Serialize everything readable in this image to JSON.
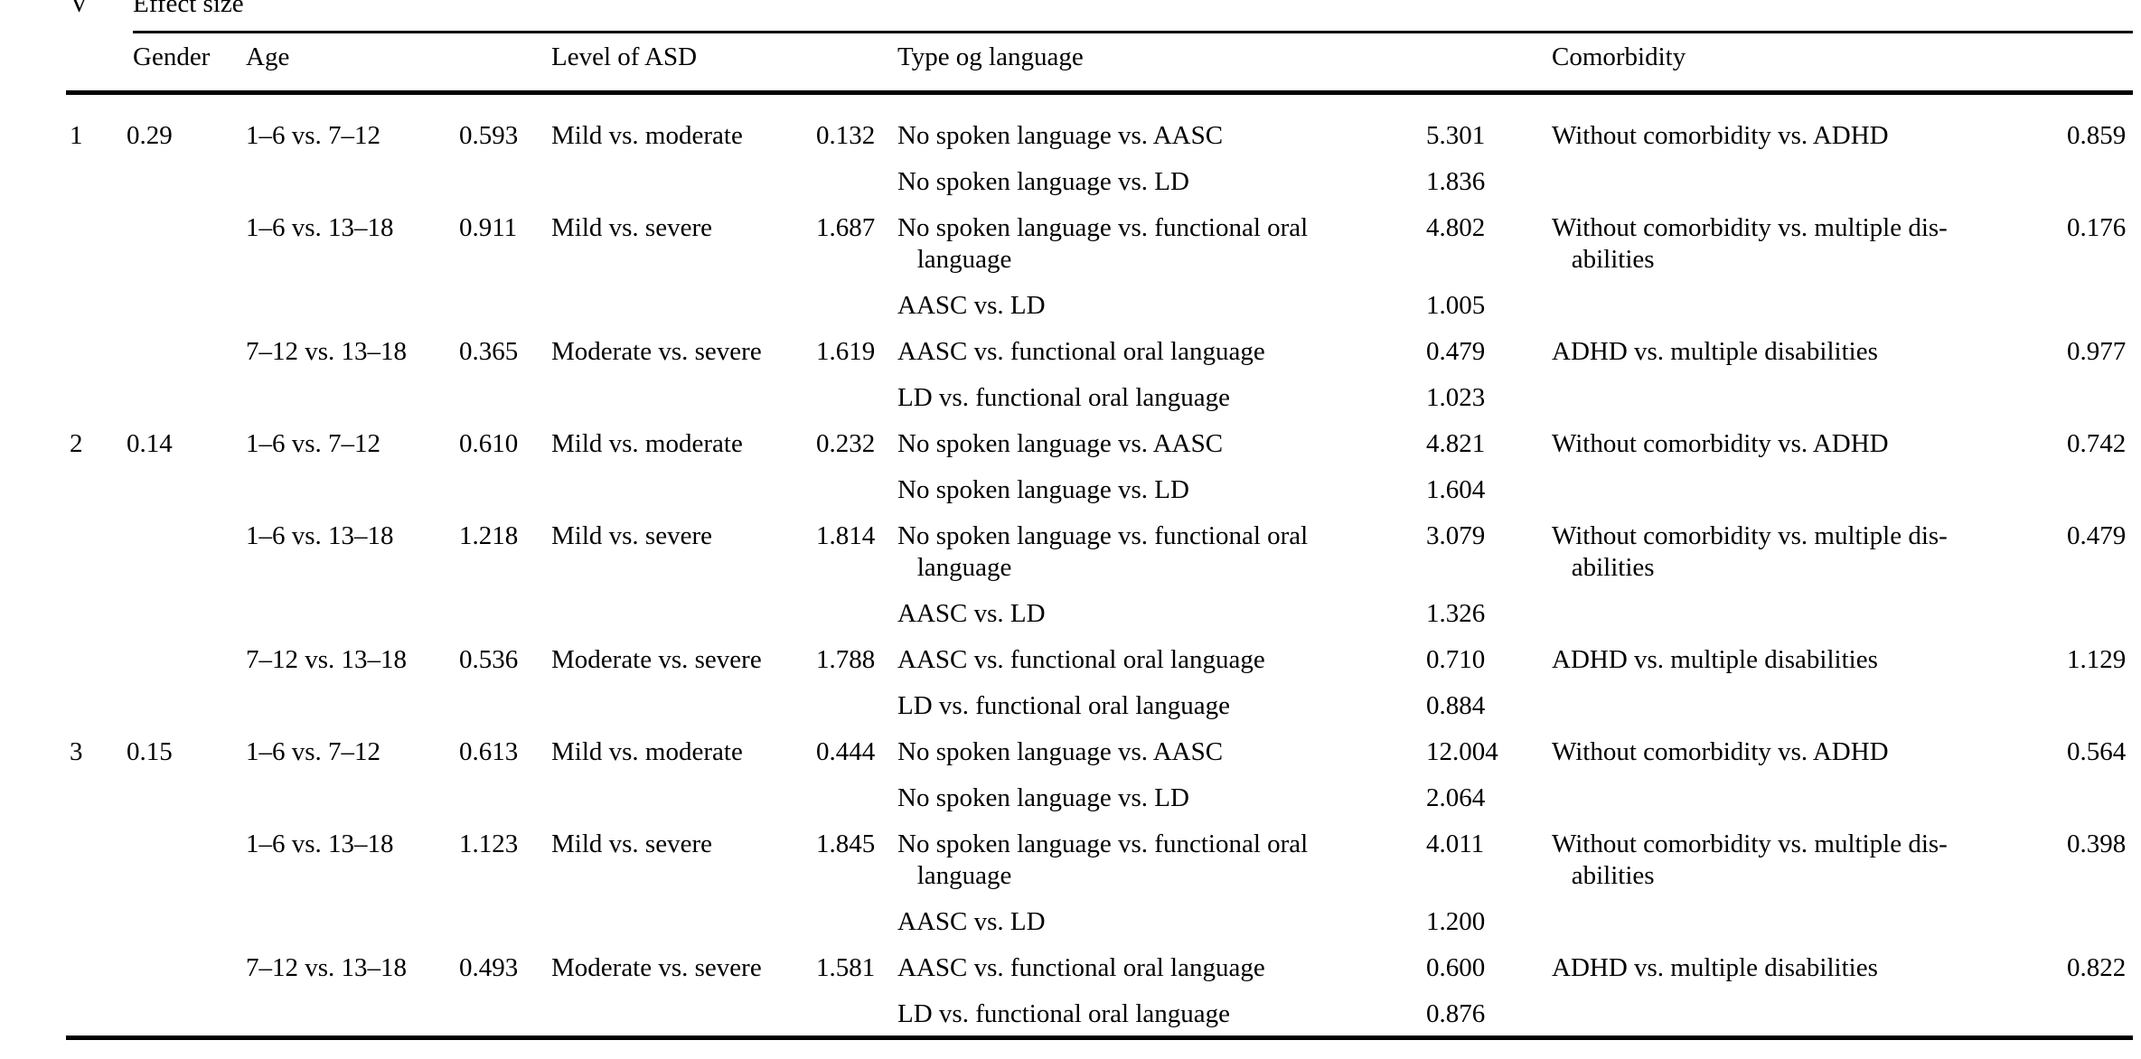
{
  "page": {
    "background": "#ffffff",
    "text_color": "#000000"
  },
  "top_header": {
    "col1": "V",
    "spanner": "Effect size"
  },
  "columns": {
    "gender": "Gender",
    "age": "Age",
    "asd": "Level of ASD",
    "language": "Type og language",
    "comorbidity": "Comorbidity"
  },
  "blocks": [
    {
      "id": "1",
      "gender": "0.29",
      "lines": [
        {
          "age": "1–6 vs. 7–12",
          "age_v": "0.593",
          "asd": "Mild vs. moderate",
          "asd_v": "0.132",
          "lang": "No spoken language vs. AASC",
          "lang_v": "5.301",
          "com": "Without comorbidity vs. ADHD",
          "com_v": "0.859"
        },
        {
          "lang": "No spoken language vs. LD",
          "lang_v": "1.836"
        },
        {
          "age": "1–6 vs. 13–18",
          "age_v": "0.911",
          "asd": "Mild vs. severe",
          "asd_v": "1.687",
          "lang": "No spoken language vs. functional oral\n   language",
          "lang_v": "4.802",
          "com": "Without comorbidity vs. multiple dis-\n   abilities",
          "com_v": "0.176"
        },
        {
          "lang": "AASC vs. LD",
          "lang_v": "1.005"
        },
        {
          "age": "7–12 vs. 13–18",
          "age_v": "0.365",
          "asd": "Moderate vs. severe",
          "asd_v": "1.619",
          "lang": "AASC vs. functional oral language",
          "lang_v": "0.479",
          "com": "ADHD vs. multiple disabilities",
          "com_v": "0.977"
        },
        {
          "lang": "LD vs. functional oral language",
          "lang_v": "1.023"
        }
      ]
    },
    {
      "id": "2",
      "gender": "0.14",
      "lines": [
        {
          "age": "1–6 vs. 7–12",
          "age_v": "0.610",
          "asd": "Mild vs. moderate",
          "asd_v": "0.232",
          "lang": "No spoken language vs. AASC",
          "lang_v": "4.821",
          "com": "Without comorbidity vs. ADHD",
          "com_v": "0.742"
        },
        {
          "lang": "No spoken language vs. LD",
          "lang_v": "1.604"
        },
        {
          "age": "1–6 vs. 13–18",
          "age_v": "1.218",
          "asd": "Mild vs. severe",
          "asd_v": "1.814",
          "lang": "No spoken language vs. functional oral\n   language",
          "lang_v": "3.079",
          "com": "Without comorbidity vs. multiple dis-\n   abilities",
          "com_v": "0.479"
        },
        {
          "lang": "AASC vs. LD",
          "lang_v": "1.326"
        },
        {
          "age": "7–12 vs. 13–18",
          "age_v": "0.536",
          "asd": "Moderate vs. severe",
          "asd_v": "1.788",
          "lang": "AASC vs. functional oral language",
          "lang_v": "0.710",
          "com": "ADHD vs. multiple disabilities",
          "com_v": "1.129"
        },
        {
          "lang": "LD vs. functional oral language",
          "lang_v": "0.884"
        }
      ]
    },
    {
      "id": "3",
      "gender": "0.15",
      "lines": [
        {
          "age": "1–6 vs. 7–12",
          "age_v": "0.613",
          "asd": "Mild vs. moderate",
          "asd_v": "0.444",
          "lang": "No spoken language vs. AASC",
          "lang_v": "12.004",
          "com": "Without comorbidity vs. ADHD",
          "com_v": "0.564"
        },
        {
          "lang": "No spoken language vs. LD",
          "lang_v": "2.064"
        },
        {
          "age": "1–6 vs. 13–18",
          "age_v": "1.123",
          "asd": "Mild vs. severe",
          "asd_v": "1.845",
          "lang": "No spoken language vs. functional oral\n   language",
          "lang_v": "4.011",
          "com": "Without comorbidity vs. multiple dis-\n   abilities",
          "com_v": "0.398"
        },
        {
          "lang": "AASC vs. LD",
          "lang_v": "1.200"
        },
        {
          "age": "7–12 vs. 13–18",
          "age_v": "0.493",
          "asd": "Moderate vs. severe",
          "asd_v": "1.581",
          "lang": "AASC vs. functional oral language",
          "lang_v": "0.600",
          "com": "ADHD vs. multiple disabilities",
          "com_v": "0.822"
        },
        {
          "lang": "LD vs. functional oral language",
          "lang_v": "0.876"
        }
      ]
    }
  ]
}
